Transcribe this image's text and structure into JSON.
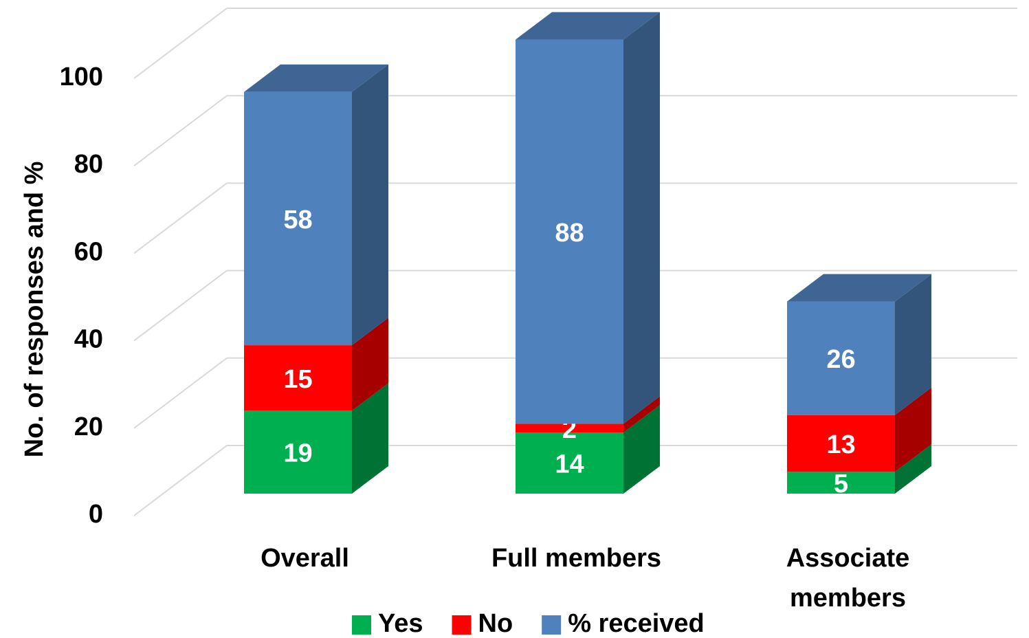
{
  "chart_data": {
    "type": "bar3d_stacked",
    "y_label": "No. of responses and  %",
    "categories": [
      "Overall",
      "Full members",
      "Associate members"
    ],
    "series": [
      {
        "name": "Yes",
        "color": "#00b050",
        "values": [
          19,
          14,
          5
        ]
      },
      {
        "name": "No",
        "color": "#ff0000",
        "values": [
          15,
          2,
          13
        ]
      },
      {
        "name": "% received",
        "color": "#4f81bd",
        "values": [
          58,
          88,
          26
        ]
      }
    ],
    "ylim": [
      0,
      100
    ],
    "yticks": [
      0,
      20,
      40,
      60,
      80,
      100
    ],
    "grid": true,
    "legend": "bottom"
  }
}
